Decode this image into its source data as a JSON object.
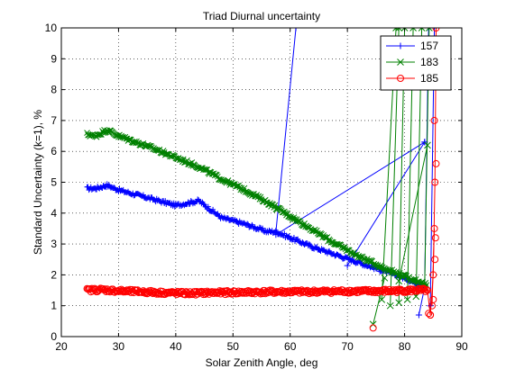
{
  "chart_data": {
    "type": "line",
    "title": "Triad Diurnal uncertainty",
    "xlabel": "Solar Zenith Angle, deg",
    "ylabel": "Standard Uncertainty (k=1), %",
    "xlim": [
      20,
      90
    ],
    "ylim": [
      0,
      10
    ],
    "xticks": [
      20,
      30,
      40,
      50,
      60,
      70,
      80,
      90
    ],
    "yticks": [
      0,
      1,
      2,
      3,
      4,
      5,
      6,
      7,
      8,
      9,
      10
    ],
    "xtick_labels": [
      "20",
      "30",
      "40",
      "50",
      "60",
      "70",
      "80",
      "90"
    ],
    "ytick_labels": [
      "0",
      "1",
      "2",
      "3",
      "4",
      "5",
      "6",
      "7",
      "8",
      "9",
      "10"
    ],
    "grid": true,
    "legend": "top-right",
    "series": [
      {
        "name": "157",
        "color": "#0000ff",
        "marker": "plus",
        "x": [
          24.5,
          26,
          28,
          30,
          33,
          36,
          40,
          44,
          48,
          52,
          56,
          57.5,
          60,
          64,
          68,
          72,
          76,
          80,
          82.5,
          83.5
        ],
        "y": [
          4.8,
          4.8,
          4.9,
          4.75,
          4.6,
          4.45,
          4.25,
          4.4,
          3.85,
          3.65,
          3.4,
          3.4,
          3.2,
          2.9,
          2.65,
          2.4,
          2.15,
          1.9,
          1.7,
          1.6
        ],
        "extra_lines": [
          [
            [
              57.5,
              3.4
            ],
            [
              61,
              10.0
            ]
          ],
          [
            [
              57.5,
              3.3
            ],
            [
              83.5,
              6.3
            ]
          ],
          [
            [
              70,
              2.3
            ],
            [
              83.5,
              6.3
            ]
          ],
          [
            [
              83.5,
              1.6
            ],
            [
              82.5,
              0.7
            ]
          ],
          [
            [
              83.5,
              1.6
            ],
            [
              84.2,
              10.0
            ]
          ],
          [
            [
              84.5,
              1.0
            ],
            [
              85.2,
              10.0
            ]
          ]
        ]
      },
      {
        "name": "183",
        "color": "#008000",
        "marker": "x",
        "x": [
          24.5,
          26,
          28,
          30,
          33,
          36,
          40,
          44,
          48,
          52,
          56,
          60,
          64,
          68,
          72,
          76,
          80,
          83,
          84
        ],
        "y": [
          6.55,
          6.5,
          6.7,
          6.5,
          6.3,
          6.1,
          5.8,
          5.5,
          5.1,
          4.75,
          4.35,
          3.9,
          3.45,
          3.0,
          2.6,
          2.25,
          1.95,
          1.75,
          1.65
        ],
        "extra_lines": [
          [
            [
              76,
              1.2
            ],
            [
              78.5,
              10.0
            ]
          ],
          [
            [
              77.5,
              1.0
            ],
            [
              79,
              10.0
            ]
          ],
          [
            [
              79,
              1.1
            ],
            [
              80,
              10.0
            ]
          ],
          [
            [
              80.5,
              1.2
            ],
            [
              81.5,
              10.0
            ]
          ],
          [
            [
              82,
              1.3
            ],
            [
              83,
              10.0
            ]
          ],
          [
            [
              83.5,
              1.6
            ],
            [
              84.3,
              10.0
            ]
          ],
          [
            [
              74.5,
              0.4
            ],
            [
              76.5,
              1.9
            ]
          ],
          [
            [
              79,
              1.8
            ],
            [
              84,
              6.2
            ]
          ]
        ]
      },
      {
        "name": "185",
        "color": "#ff0000",
        "marker": "circle",
        "x": [
          24.5,
          27,
          30,
          34,
          38,
          42,
          46,
          50,
          54,
          58,
          62,
          66,
          70,
          74,
          78,
          82,
          84
        ],
        "y": [
          1.5,
          1.52,
          1.48,
          1.45,
          1.42,
          1.4,
          1.42,
          1.43,
          1.44,
          1.45,
          1.45,
          1.46,
          1.47,
          1.47,
          1.48,
          1.5,
          1.5
        ],
        "extra_lines": [
          [
            [
              84,
              1.5
            ],
            [
              84.5,
              0.7
            ],
            [
              85,
              2.0
            ],
            [
              85.3,
              5.0
            ],
            [
              85.5,
              10.0
            ]
          ],
          [
            [
              84.8,
              1.0
            ],
            [
              85.2,
              3.5
            ]
          ]
        ],
        "extra_points": [
          [
            74.5,
            0.28
          ],
          [
            84.2,
            0.75
          ],
          [
            84.5,
            0.7
          ],
          [
            85,
            1.2
          ],
          [
            85.3,
            2.5
          ],
          [
            85.4,
            3.2
          ],
          [
            85.5,
            5.6
          ],
          [
            85.2,
            7.0
          ]
        ]
      }
    ]
  }
}
